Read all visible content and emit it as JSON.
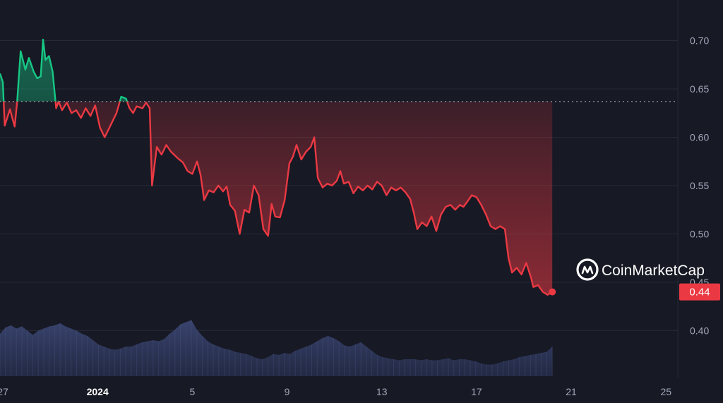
{
  "watermark": "CoinMarketCap",
  "current_price_label": "0.44",
  "colors": {
    "background": "#171924",
    "grid": "#262a38",
    "up": "#16c784",
    "down": "#ea3943",
    "volume": "#2e3a5f",
    "baseline": "#9aa0b4",
    "badge": "#ea3943"
  },
  "chart_data": {
    "type": "line",
    "title": "",
    "xlabel": "",
    "ylabel": "",
    "ylim": [
      0.355,
      0.742
    ],
    "baseline": 0.637,
    "current_value": 0.44,
    "y_ticks": [
      "0.70",
      "0.65",
      "0.60",
      "0.55",
      "0.50",
      "0.45",
      "0.40"
    ],
    "x_ticks": [
      {
        "label": "27",
        "x": 0.5,
        "bold": false
      },
      {
        "label": "2024",
        "x": 4.5,
        "bold": true
      },
      {
        "label": "5",
        "x": 8.5,
        "bold": false
      },
      {
        "label": "9",
        "x": 12.5,
        "bold": false
      },
      {
        "label": "13",
        "x": 16.5,
        "bold": false
      },
      {
        "label": "17",
        "x": 20.5,
        "bold": false
      },
      {
        "label": "21",
        "x": 24.5,
        "bold": false
      },
      {
        "label": "25",
        "x": 28.5,
        "bold": false
      }
    ],
    "x_range": [
      0.38,
      29.0
    ],
    "series": [
      {
        "points": [
          [
            0.38,
            0.666
          ],
          [
            0.5,
            0.657
          ],
          [
            0.58,
            0.612
          ],
          [
            0.8,
            0.629
          ],
          [
            1.0,
            0.611
          ],
          [
            1.1,
            0.636
          ],
          [
            1.25,
            0.689
          ],
          [
            1.45,
            0.67
          ],
          [
            1.6,
            0.682
          ],
          [
            1.8,
            0.668
          ],
          [
            1.95,
            0.661
          ],
          [
            2.1,
            0.663
          ],
          [
            2.2,
            0.701
          ],
          [
            2.3,
            0.68
          ],
          [
            2.45,
            0.684
          ],
          [
            2.6,
            0.668
          ],
          [
            2.75,
            0.63
          ],
          [
            2.85,
            0.637
          ],
          [
            3.0,
            0.628
          ],
          [
            3.2,
            0.636
          ],
          [
            3.4,
            0.625
          ],
          [
            3.6,
            0.628
          ],
          [
            3.8,
            0.62
          ],
          [
            4.0,
            0.63
          ],
          [
            4.2,
            0.622
          ],
          [
            4.4,
            0.633
          ],
          [
            4.6,
            0.61
          ],
          [
            4.8,
            0.6
          ],
          [
            5.0,
            0.61
          ],
          [
            5.3,
            0.625
          ],
          [
            5.5,
            0.642
          ],
          [
            5.7,
            0.64
          ],
          [
            5.85,
            0.63
          ],
          [
            6.0,
            0.625
          ],
          [
            6.15,
            0.632
          ],
          [
            6.4,
            0.63
          ],
          [
            6.55,
            0.636
          ],
          [
            6.7,
            0.63
          ],
          [
            6.8,
            0.55
          ],
          [
            6.9,
            0.57
          ],
          [
            7.0,
            0.59
          ],
          [
            7.2,
            0.582
          ],
          [
            7.4,
            0.592
          ],
          [
            7.6,
            0.585
          ],
          [
            7.9,
            0.578
          ],
          [
            8.1,
            0.574
          ],
          [
            8.3,
            0.565
          ],
          [
            8.5,
            0.562
          ],
          [
            8.7,
            0.575
          ],
          [
            8.85,
            0.561
          ],
          [
            9.0,
            0.535
          ],
          [
            9.2,
            0.545
          ],
          [
            9.4,
            0.543
          ],
          [
            9.6,
            0.55
          ],
          [
            9.8,
            0.544
          ],
          [
            9.95,
            0.549
          ],
          [
            10.1,
            0.53
          ],
          [
            10.3,
            0.524
          ],
          [
            10.5,
            0.5
          ],
          [
            10.7,
            0.525
          ],
          [
            10.9,
            0.522
          ],
          [
            11.1,
            0.55
          ],
          [
            11.3,
            0.54
          ],
          [
            11.5,
            0.505
          ],
          [
            11.7,
            0.498
          ],
          [
            11.85,
            0.531
          ],
          [
            12.0,
            0.518
          ],
          [
            12.2,
            0.517
          ],
          [
            12.4,
            0.535
          ],
          [
            12.6,
            0.573
          ],
          [
            12.75,
            0.58
          ],
          [
            12.9,
            0.592
          ],
          [
            13.1,
            0.577
          ],
          [
            13.3,
            0.585
          ],
          [
            13.5,
            0.59
          ],
          [
            13.65,
            0.6
          ],
          [
            13.8,
            0.558
          ],
          [
            14.0,
            0.548
          ],
          [
            14.2,
            0.552
          ],
          [
            14.4,
            0.55
          ],
          [
            14.6,
            0.555
          ],
          [
            14.75,
            0.565
          ],
          [
            14.9,
            0.552
          ],
          [
            15.1,
            0.554
          ],
          [
            15.3,
            0.542
          ],
          [
            15.5,
            0.549
          ],
          [
            15.7,
            0.545
          ],
          [
            15.9,
            0.55
          ],
          [
            16.1,
            0.546
          ],
          [
            16.3,
            0.554
          ],
          [
            16.5,
            0.55
          ],
          [
            16.7,
            0.54
          ],
          [
            16.9,
            0.548
          ],
          [
            17.1,
            0.545
          ],
          [
            17.3,
            0.548
          ],
          [
            17.5,
            0.543
          ],
          [
            17.7,
            0.536
          ],
          [
            17.85,
            0.522
          ],
          [
            18.0,
            0.505
          ],
          [
            18.2,
            0.512
          ],
          [
            18.4,
            0.508
          ],
          [
            18.6,
            0.518
          ],
          [
            18.8,
            0.503
          ],
          [
            19.0,
            0.52
          ],
          [
            19.2,
            0.528
          ],
          [
            19.4,
            0.53
          ],
          [
            19.6,
            0.525
          ],
          [
            19.8,
            0.53
          ],
          [
            19.95,
            0.528
          ],
          [
            20.1,
            0.533
          ],
          [
            20.3,
            0.54
          ],
          [
            20.5,
            0.538
          ],
          [
            20.7,
            0.53
          ],
          [
            20.9,
            0.52
          ],
          [
            21.1,
            0.508
          ],
          [
            21.3,
            0.505
          ],
          [
            21.5,
            0.508
          ],
          [
            21.7,
            0.505
          ],
          [
            21.85,
            0.475
          ],
          [
            22.0,
            0.46
          ],
          [
            22.2,
            0.465
          ],
          [
            22.4,
            0.458
          ],
          [
            22.6,
            0.47
          ],
          [
            22.8,
            0.455
          ],
          [
            22.9,
            0.445
          ],
          [
            23.1,
            0.447
          ],
          [
            23.3,
            0.44
          ],
          [
            23.5,
            0.437
          ],
          [
            23.7,
            0.44
          ]
        ]
      }
    ],
    "volume": [
      0.4,
      0.46,
      0.48,
      0.45,
      0.47,
      0.43,
      0.39,
      0.43,
      0.45,
      0.47,
      0.48,
      0.5,
      0.47,
      0.45,
      0.43,
      0.4,
      0.38,
      0.34,
      0.3,
      0.28,
      0.26,
      0.25,
      0.26,
      0.28,
      0.28,
      0.3,
      0.32,
      0.33,
      0.34,
      0.33,
      0.35,
      0.4,
      0.44,
      0.49,
      0.51,
      0.53,
      0.44,
      0.38,
      0.33,
      0.3,
      0.28,
      0.26,
      0.25,
      0.23,
      0.22,
      0.21,
      0.19,
      0.17,
      0.16,
      0.18,
      0.21,
      0.2,
      0.22,
      0.21,
      0.24,
      0.26,
      0.28,
      0.3,
      0.33,
      0.36,
      0.38,
      0.36,
      0.33,
      0.29,
      0.28,
      0.3,
      0.32,
      0.28,
      0.24,
      0.2,
      0.18,
      0.17,
      0.16,
      0.15,
      0.16,
      0.16,
      0.16,
      0.15,
      0.16,
      0.15,
      0.15,
      0.16,
      0.17,
      0.15,
      0.16,
      0.16,
      0.15,
      0.14,
      0.12,
      0.11,
      0.11,
      0.12,
      0.14,
      0.15,
      0.16,
      0.18,
      0.19,
      0.2,
      0.21,
      0.22,
      0.23,
      0.28
    ],
    "volume_x_range": [
      0.38,
      23.7
    ]
  }
}
